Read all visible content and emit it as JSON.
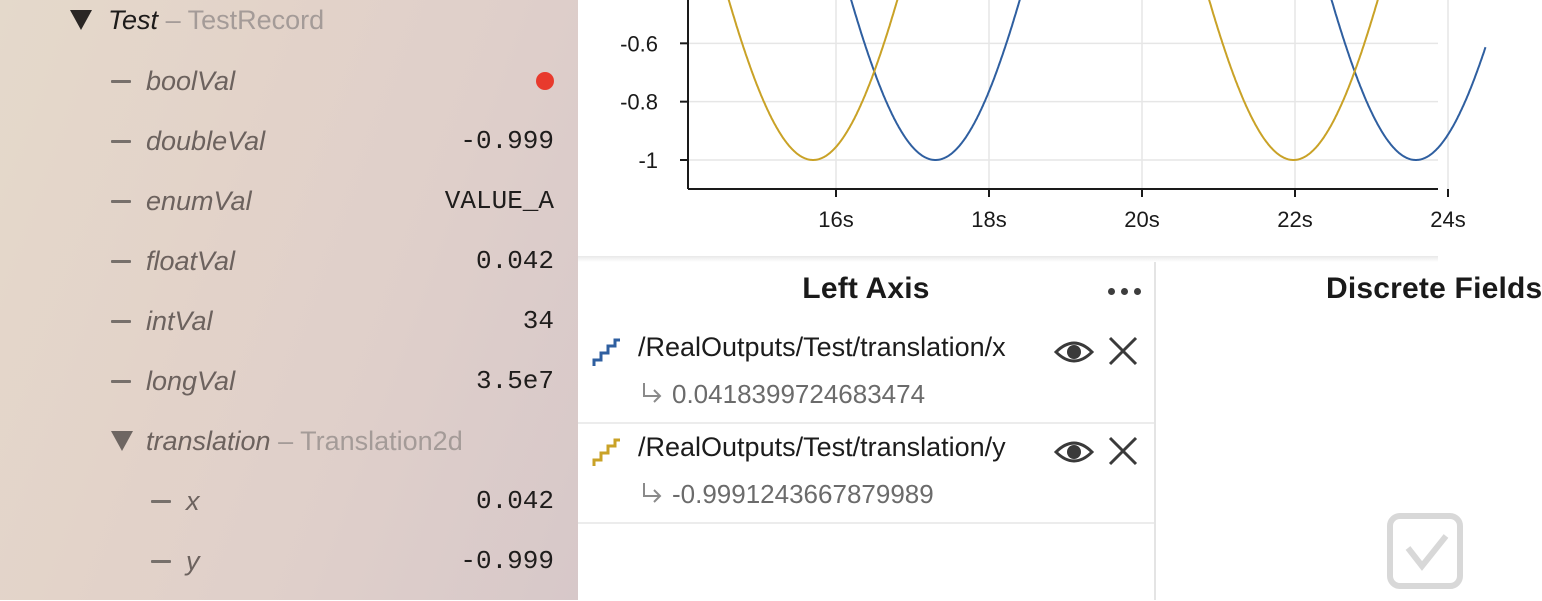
{
  "sidebar": {
    "root": {
      "name": "Test",
      "type": "– TestRecord"
    },
    "fields": [
      {
        "name": "boolVal",
        "value": null,
        "indicator": "red-dot"
      },
      {
        "name": "doubleVal",
        "value": "-0.999"
      },
      {
        "name": "enumVal",
        "value": "VALUE_A"
      },
      {
        "name": "floatVal",
        "value": "0.042"
      },
      {
        "name": "intVal",
        "value": "34"
      },
      {
        "name": "longVal",
        "value": "3.5e7"
      }
    ],
    "translation": {
      "name": "translation",
      "type": "– Translation2d"
    },
    "translation_fields": [
      {
        "name": "x",
        "value": "0.042"
      },
      {
        "name": "y",
        "value": "-0.999"
      }
    ]
  },
  "chart_data": {
    "type": "line",
    "x_unit": "s",
    "xlim": [
      14.3,
      24.0
    ],
    "ylim": [
      -1.1,
      -0.5
    ],
    "x_ticks": [
      "16s",
      "18s",
      "20s",
      "22s",
      "24s"
    ],
    "y_ticks": [
      "-0.6",
      "-0.8",
      "-1"
    ],
    "grid": true,
    "series": [
      {
        "path": "/RealOutputs/Test/translation/x",
        "color": "#2f5fa0",
        "shape": "sin",
        "min_at_s": [
          17.3,
          23.6
        ]
      },
      {
        "path": "/RealOutputs/Test/translation/y",
        "color": "#c9a227",
        "shape": "sin",
        "min_at_s": [
          15.7,
          22.0
        ]
      }
    ]
  },
  "left_axis_panel": {
    "title": "Left Axis",
    "items": [
      {
        "path": "/RealOutputs/Test/translation/x",
        "value": "0.0418399724683474",
        "color": "#2f5fa0"
      },
      {
        "path": "/RealOutputs/Test/translation/y",
        "value": "-0.9991243667879989",
        "color": "#c9a227"
      }
    ]
  },
  "discrete_panel": {
    "title": "Discrete Fields"
  },
  "colors": {
    "accent_blue": "#2f5fa0",
    "accent_yellow": "#c9a227",
    "bool_false": "#e83a2d"
  },
  "icons": [
    "stair-step-icon",
    "eye-icon",
    "close-icon",
    "arrow-return-icon",
    "more-icon",
    "drop-target-icon"
  ]
}
